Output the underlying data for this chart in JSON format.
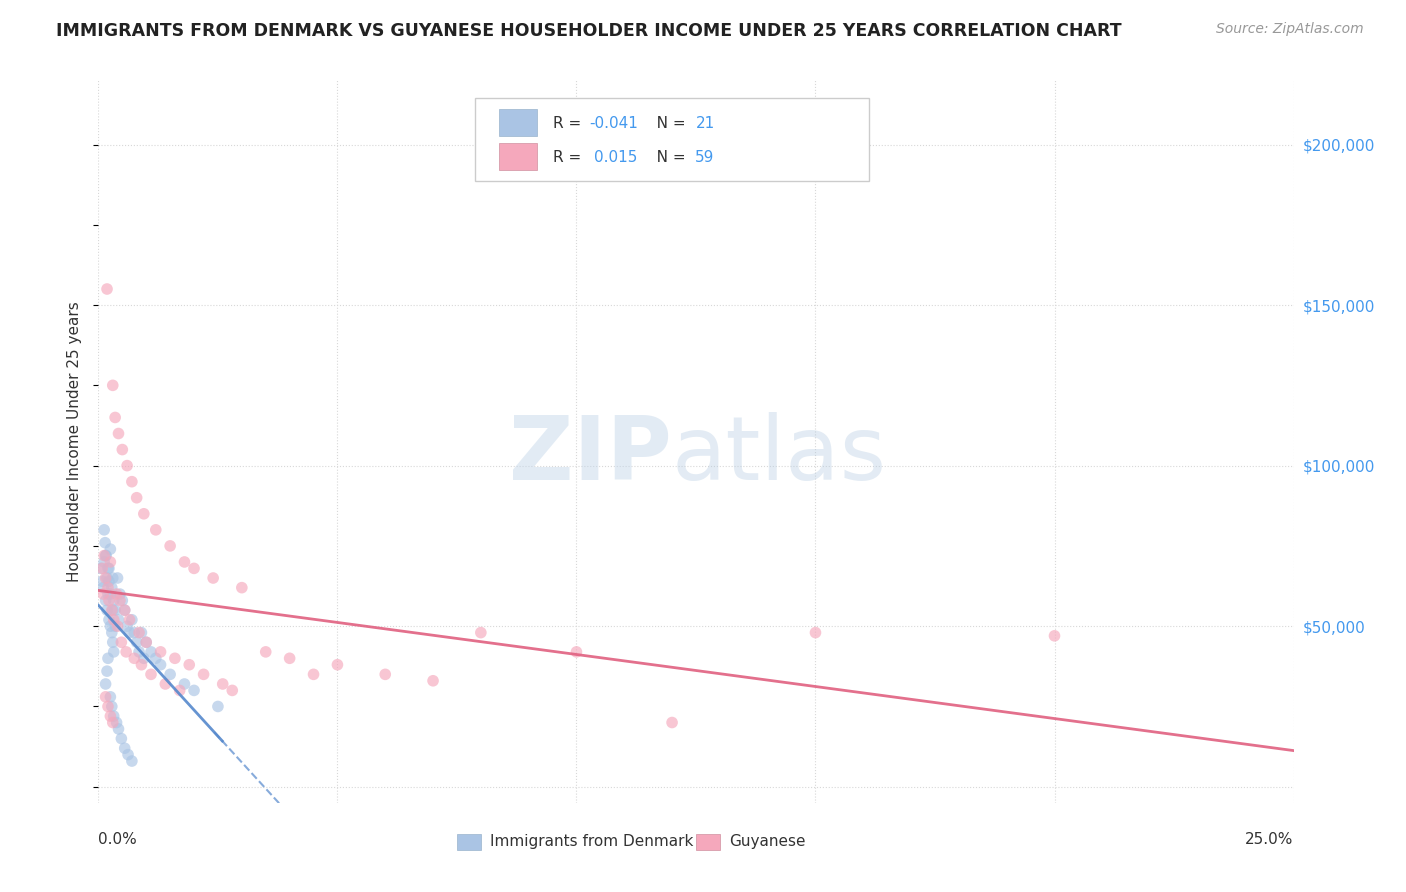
{
  "title": "IMMIGRANTS FROM DENMARK VS GUYANESE HOUSEHOLDER INCOME UNDER 25 YEARS CORRELATION CHART",
  "source": "Source: ZipAtlas.com",
  "ylabel": "Householder Income Under 25 years",
  "xlim": [
    0.0,
    25.0
  ],
  "ylim": [
    -5000,
    220000
  ],
  "yticks": [
    0,
    50000,
    100000,
    150000,
    200000
  ],
  "xticks": [
    0.0,
    5.0,
    10.0,
    15.0,
    20.0,
    25.0
  ],
  "background_color": "#ffffff",
  "grid_color": "#d8d8d8",
  "blue_color": "#aac4e4",
  "pink_color": "#f5a8bc",
  "blue_line_color": "#5588cc",
  "pink_line_color": "#e06080",
  "scatter_size": 70,
  "scatter_alpha": 0.65,
  "denmark_x": [
    0.05,
    0.08,
    0.1,
    0.12,
    0.15,
    0.15,
    0.18,
    0.18,
    0.2,
    0.22,
    0.22,
    0.25,
    0.25,
    0.28,
    0.28,
    0.3,
    0.3,
    0.32,
    0.32,
    0.35,
    0.4,
    0.42,
    0.45,
    0.5,
    0.55,
    0.6,
    0.65,
    0.7,
    0.75,
    0.8,
    0.85,
    0.9,
    0.95,
    1.0,
    1.1,
    1.2,
    1.3,
    1.5,
    1.8,
    2.0,
    2.5,
    0.12,
    0.14,
    0.16,
    0.2,
    0.22,
    0.25,
    0.3,
    0.35,
    0.2,
    0.18,
    0.15,
    0.25,
    0.28,
    0.32,
    0.38,
    0.42,
    0.48,
    0.55,
    0.62,
    0.7
  ],
  "denmark_y": [
    68000,
    64000,
    62000,
    70000,
    72000,
    58000,
    65000,
    55000,
    60000,
    68000,
    52000,
    74000,
    50000,
    62000,
    48000,
    65000,
    45000,
    58000,
    42000,
    55000,
    65000,
    52000,
    60000,
    58000,
    55000,
    50000,
    48000,
    52000,
    48000,
    45000,
    42000,
    48000,
    40000,
    45000,
    42000,
    40000,
    38000,
    35000,
    32000,
    30000,
    25000,
    80000,
    76000,
    72000,
    68000,
    64000,
    60000,
    55000,
    50000,
    40000,
    36000,
    32000,
    28000,
    25000,
    22000,
    20000,
    18000,
    15000,
    12000,
    10000,
    8000
  ],
  "guyanese_x": [
    0.08,
    0.1,
    0.12,
    0.15,
    0.18,
    0.2,
    0.22,
    0.25,
    0.28,
    0.3,
    0.32,
    0.35,
    0.38,
    0.4,
    0.42,
    0.45,
    0.48,
    0.5,
    0.55,
    0.58,
    0.6,
    0.65,
    0.7,
    0.75,
    0.8,
    0.85,
    0.9,
    0.95,
    1.0,
    1.1,
    1.2,
    1.3,
    1.4,
    1.5,
    1.6,
    1.7,
    1.8,
    1.9,
    2.0,
    2.2,
    2.4,
    2.6,
    2.8,
    3.0,
    3.5,
    4.0,
    4.5,
    5.0,
    6.0,
    7.0,
    8.0,
    10.0,
    12.0,
    15.0,
    20.0,
    0.15,
    0.2,
    0.25,
    0.3
  ],
  "guyanese_y": [
    68000,
    60000,
    72000,
    65000,
    155000,
    62000,
    58000,
    70000,
    55000,
    125000,
    52000,
    115000,
    60000,
    50000,
    110000,
    58000,
    45000,
    105000,
    55000,
    42000,
    100000,
    52000,
    95000,
    40000,
    90000,
    48000,
    38000,
    85000,
    45000,
    35000,
    80000,
    42000,
    32000,
    75000,
    40000,
    30000,
    70000,
    38000,
    68000,
    35000,
    65000,
    32000,
    30000,
    62000,
    42000,
    40000,
    35000,
    38000,
    35000,
    33000,
    48000,
    42000,
    20000,
    48000,
    47000,
    28000,
    25000,
    22000,
    20000
  ]
}
